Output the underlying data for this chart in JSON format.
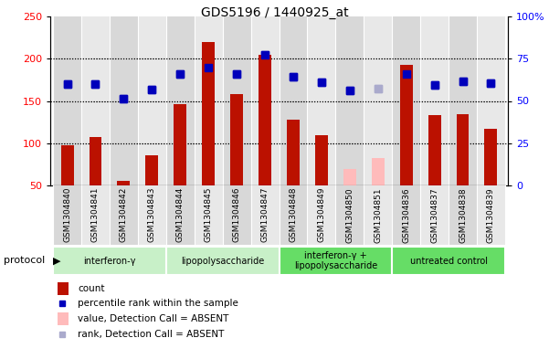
{
  "title": "GDS5196 / 1440925_at",
  "samples": [
    "GSM1304840",
    "GSM1304841",
    "GSM1304842",
    "GSM1304843",
    "GSM1304844",
    "GSM1304845",
    "GSM1304846",
    "GSM1304847",
    "GSM1304848",
    "GSM1304849",
    "GSM1304850",
    "GSM1304851",
    "GSM1304836",
    "GSM1304837",
    "GSM1304838",
    "GSM1304839"
  ],
  "counts": [
    98,
    107,
    55,
    86,
    146,
    220,
    158,
    205,
    128,
    110,
    70,
    82,
    193,
    133,
    134,
    117
  ],
  "ranks": [
    170,
    170,
    153,
    164,
    182,
    190,
    182,
    205,
    179,
    172,
    162,
    165,
    182,
    169,
    173,
    171
  ],
  "absent_count_idx": [
    10,
    11
  ],
  "absent_rank_idx": [
    11
  ],
  "groups": [
    {
      "label": "interferon-γ",
      "start": 0,
      "end": 4,
      "color": "#c8f0c8"
    },
    {
      "label": "lipopolysaccharide",
      "start": 4,
      "end": 8,
      "color": "#c8f0c8"
    },
    {
      "label": "interferon-γ +\nlipopolysaccharide",
      "start": 8,
      "end": 12,
      "color": "#66dd66"
    },
    {
      "label": "untreated control",
      "start": 12,
      "end": 16,
      "color": "#66dd66"
    }
  ],
  "ylim_left": [
    50,
    250
  ],
  "ylim_right": [
    0,
    100
  ],
  "yticks_left": [
    50,
    100,
    150,
    200,
    250
  ],
  "yticks_right": [
    0,
    25,
    50,
    75,
    100
  ],
  "yticklabels_right": [
    "0",
    "25",
    "50",
    "75",
    "100%"
  ],
  "bar_color": "#bb1100",
  "bar_absent_color": "#ffbbbb",
  "rank_color": "#0000bb",
  "rank_absent_color": "#aaaacc",
  "bar_width": 0.45,
  "rank_marker_size": 6,
  "legend_items": [
    {
      "label": "count",
      "color": "#bb1100",
      "type": "bar"
    },
    {
      "label": "percentile rank within the sample",
      "color": "#0000bb",
      "type": "square"
    },
    {
      "label": "value, Detection Call = ABSENT",
      "color": "#ffbbbb",
      "type": "bar"
    },
    {
      "label": "rank, Detection Call = ABSENT",
      "color": "#aaaacc",
      "type": "square"
    }
  ]
}
